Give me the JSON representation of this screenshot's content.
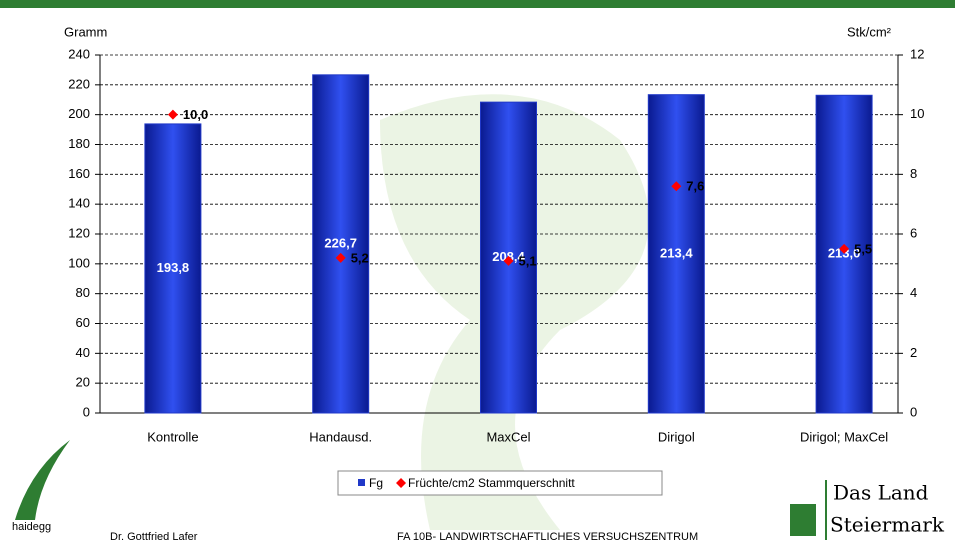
{
  "chart_data": {
    "type": "bar",
    "y_label": "Gramm",
    "y2_label": "Stk/cm²",
    "categories": [
      "Kontrolle",
      "Handausd.",
      "MaxCel",
      "Dirigol",
      "Dirigol; MaxCel"
    ],
    "series": [
      {
        "name": "Fg",
        "color": "#2038c8",
        "values": [
          193.8,
          226.7,
          208.4,
          213.4,
          213.0
        ],
        "value_labels": [
          "193,8",
          "226,7",
          "208,4",
          "213,4",
          "213,0"
        ]
      },
      {
        "name": "Früchte/cm2 Stammquerschnitt",
        "color": "#ff0000",
        "axis": "y2",
        "values": [
          10.0,
          5.2,
          5.1,
          7.6,
          5.5
        ],
        "value_labels": [
          "10,0",
          "5,2",
          "5,1",
          "7,6",
          "5,5"
        ]
      }
    ],
    "ylim": [
      0,
      240
    ],
    "yticks": [
      0,
      20,
      40,
      60,
      80,
      100,
      120,
      140,
      160,
      180,
      200,
      220,
      240
    ],
    "y2lim": [
      0,
      12
    ],
    "y2ticks": [
      0,
      2,
      4,
      6,
      8,
      10,
      12
    ],
    "grid": true
  },
  "footer": {
    "logo_left": "haidegg",
    "author": "Dr. Gottfried Lafer",
    "institution": "FA 10B- LANDWIRTSCHAFTLICHES VERSUCHSZENTRUM",
    "logo_right_1": "Das Land",
    "logo_right_2": "Steiermark"
  }
}
